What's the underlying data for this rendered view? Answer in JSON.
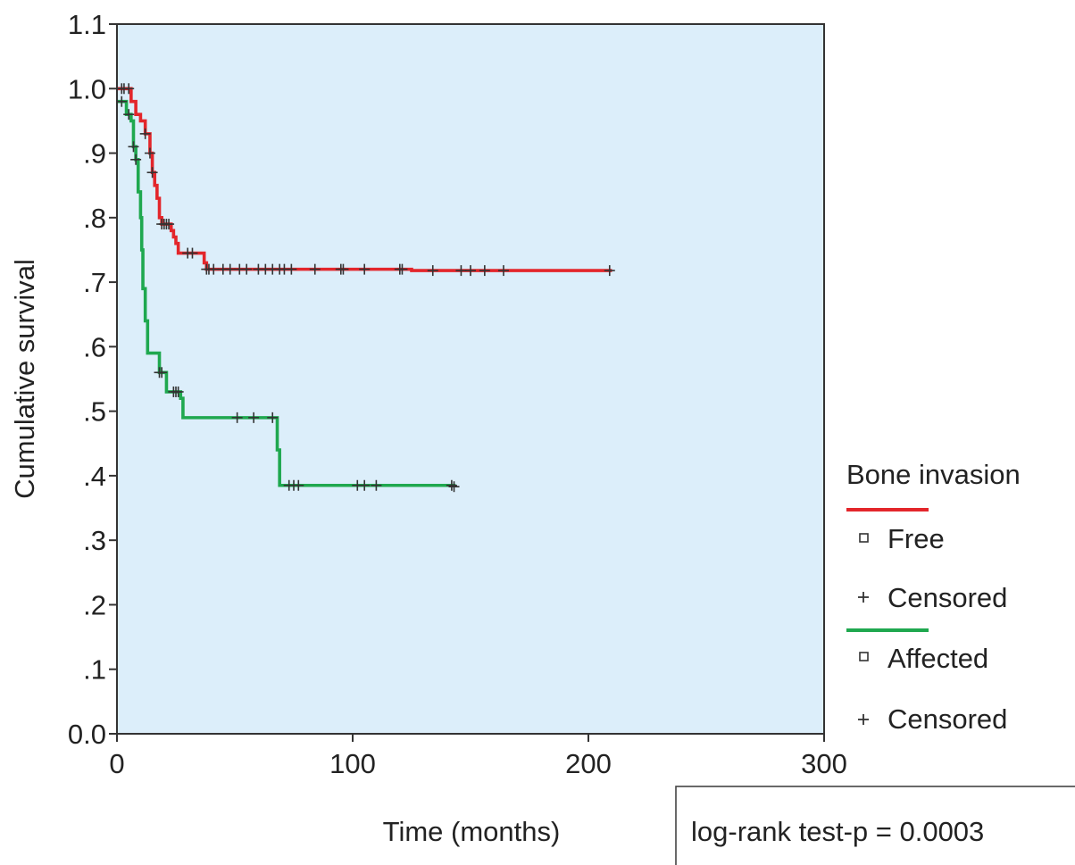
{
  "chart_data": {
    "type": "line",
    "subtype": "kaplan-meier-step",
    "xlabel": "Time (months)",
    "ylabel": "Cumulative survival",
    "xlim": [
      0,
      300
    ],
    "ylim": [
      0.0,
      1.1
    ],
    "xticks": [
      {
        "value": 0,
        "label": "0"
      },
      {
        "value": 100,
        "label": "100"
      },
      {
        "value": 200,
        "label": "200"
      },
      {
        "value": 300,
        "label": "300"
      }
    ],
    "yticks": [
      {
        "value": 0.0,
        "label": "0.0"
      },
      {
        "value": 0.1,
        "label": ".1"
      },
      {
        "value": 0.2,
        "label": ".2"
      },
      {
        "value": 0.3,
        "label": ".3"
      },
      {
        "value": 0.4,
        "label": ".4"
      },
      {
        "value": 0.5,
        "label": ".5"
      },
      {
        "value": 0.6,
        "label": ".6"
      },
      {
        "value": 0.7,
        "label": ".7"
      },
      {
        "value": 0.8,
        "label": ".8"
      },
      {
        "value": 0.9,
        "label": ".9"
      },
      {
        "value": 1.0,
        "label": "1.0"
      },
      {
        "value": 1.1,
        "label": "1.1"
      }
    ],
    "grid": false,
    "plot_background": "#dceefa",
    "legend": {
      "placement": "right",
      "title": "Bone invasion",
      "entries": [
        {
          "kind": "line",
          "color": "#e3262b",
          "label": ""
        },
        {
          "kind": "square",
          "label": "Free"
        },
        {
          "kind": "plus",
          "label": "Censored"
        },
        {
          "kind": "line",
          "color": "#1fa84f",
          "label": ""
        },
        {
          "kind": "square",
          "label": "Affected"
        },
        {
          "kind": "plus",
          "label": "Censored"
        }
      ]
    },
    "annotation": "log-rank test-p = 0.0003",
    "series": [
      {
        "name": "Free",
        "color": "#e3262b",
        "steps": [
          {
            "x": 0,
            "y": 1.0
          },
          {
            "x": 6,
            "y": 0.98
          },
          {
            "x": 8,
            "y": 0.96
          },
          {
            "x": 10,
            "y": 0.95
          },
          {
            "x": 12,
            "y": 0.93
          },
          {
            "x": 14,
            "y": 0.9
          },
          {
            "x": 15,
            "y": 0.87
          },
          {
            "x": 16,
            "y": 0.85
          },
          {
            "x": 17,
            "y": 0.83
          },
          {
            "x": 18,
            "y": 0.8
          },
          {
            "x": 19,
            "y": 0.79
          },
          {
            "x": 23,
            "y": 0.78
          },
          {
            "x": 24,
            "y": 0.77
          },
          {
            "x": 25,
            "y": 0.76
          },
          {
            "x": 26,
            "y": 0.745
          },
          {
            "x": 34,
            "y": 0.745
          },
          {
            "x": 37,
            "y": 0.73
          },
          {
            "x": 38,
            "y": 0.72
          },
          {
            "x": 80,
            "y": 0.72
          },
          {
            "x": 125,
            "y": 0.718
          },
          {
            "x": 210,
            "y": 0.718
          }
        ],
        "censored_x": [
          2,
          3,
          5,
          12,
          14,
          15,
          19,
          20,
          21,
          22,
          30,
          32,
          38,
          39,
          41,
          45,
          48,
          52,
          55,
          60,
          63,
          66,
          69,
          71,
          74,
          84,
          95,
          96,
          105,
          120,
          121,
          134,
          146,
          150,
          156,
          164,
          209
        ]
      },
      {
        "name": "Affected",
        "color": "#1fa84f",
        "steps": [
          {
            "x": 0,
            "y": 0.98
          },
          {
            "x": 4,
            "y": 0.96
          },
          {
            "x": 6,
            "y": 0.95
          },
          {
            "x": 7,
            "y": 0.91
          },
          {
            "x": 8,
            "y": 0.89
          },
          {
            "x": 9,
            "y": 0.84
          },
          {
            "x": 10,
            "y": 0.8
          },
          {
            "x": 10.5,
            "y": 0.75
          },
          {
            "x": 11,
            "y": 0.69
          },
          {
            "x": 12,
            "y": 0.64
          },
          {
            "x": 13,
            "y": 0.59
          },
          {
            "x": 17,
            "y": 0.59
          },
          {
            "x": 18,
            "y": 0.56
          },
          {
            "x": 21,
            "y": 0.53
          },
          {
            "x": 27,
            "y": 0.52
          },
          {
            "x": 28,
            "y": 0.49
          },
          {
            "x": 67,
            "y": 0.49
          },
          {
            "x": 68,
            "y": 0.44
          },
          {
            "x": 69,
            "y": 0.385
          },
          {
            "x": 143,
            "y": 0.383
          }
        ],
        "censored_x": [
          2,
          5,
          7,
          8,
          18,
          19,
          24,
          25,
          26,
          51,
          58,
          66,
          73,
          75,
          77,
          102,
          105,
          110,
          142,
          143
        ]
      }
    ]
  }
}
